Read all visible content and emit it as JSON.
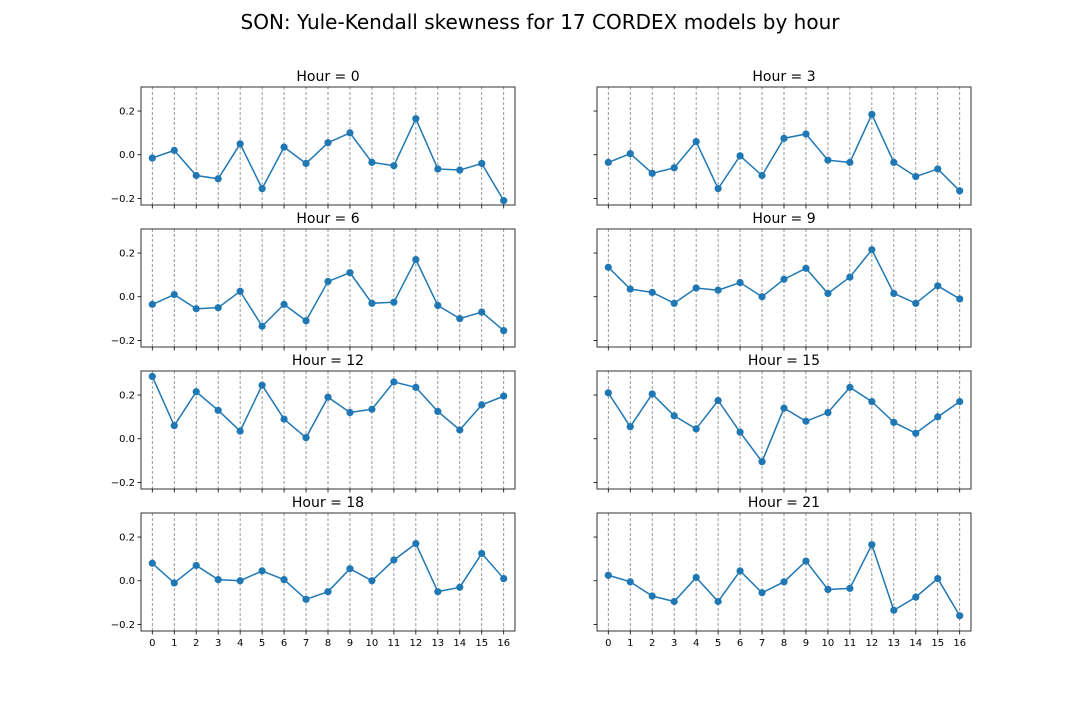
{
  "suptitle": "SON: Yule-Kendall skewness for 17 CORDEX models by hour",
  "colors": {
    "line": "#1f77b4",
    "grid": "#808080"
  },
  "chart_data": [
    {
      "type": "line",
      "title": "Hour = 0",
      "x": [
        0,
        1,
        2,
        3,
        4,
        5,
        6,
        7,
        8,
        9,
        10,
        11,
        12,
        13,
        14,
        15,
        16
      ],
      "ylim": [
        -0.23,
        0.31
      ],
      "yticks": [
        -0.2,
        0.0,
        0.2
      ],
      "ytick_labels": [
        "−0.2",
        "0.0",
        "0.2"
      ],
      "xtick_labels": [],
      "grid": "vertical-dashed",
      "values": [
        -0.015,
        0.02,
        -0.095,
        -0.11,
        0.05,
        -0.155,
        0.035,
        -0.04,
        0.055,
        0.1,
        -0.035,
        -0.05,
        0.165,
        -0.065,
        -0.07,
        -0.04,
        -0.21
      ]
    },
    {
      "type": "line",
      "title": "Hour = 3",
      "x": [
        0,
        1,
        2,
        3,
        4,
        5,
        6,
        7,
        8,
        9,
        10,
        11,
        12,
        13,
        14,
        15,
        16
      ],
      "ylim": [
        -0.23,
        0.31
      ],
      "yticks": [
        -0.2,
        0.0,
        0.2
      ],
      "ytick_labels": [],
      "xtick_labels": [],
      "grid": "vertical-dashed",
      "values": [
        -0.035,
        0.005,
        -0.085,
        -0.06,
        0.06,
        -0.155,
        -0.005,
        -0.095,
        0.075,
        0.095,
        -0.025,
        -0.035,
        0.185,
        -0.035,
        -0.1,
        -0.065,
        -0.165
      ]
    },
    {
      "type": "line",
      "title": "Hour = 6",
      "x": [
        0,
        1,
        2,
        3,
        4,
        5,
        6,
        7,
        8,
        9,
        10,
        11,
        12,
        13,
        14,
        15,
        16
      ],
      "ylim": [
        -0.23,
        0.31
      ],
      "yticks": [
        -0.2,
        0.0,
        0.2
      ],
      "ytick_labels": [
        "−0.2",
        "0.0",
        "0.2"
      ],
      "xtick_labels": [],
      "grid": "vertical-dashed",
      "values": [
        -0.035,
        0.01,
        -0.055,
        -0.05,
        0.025,
        -0.135,
        -0.035,
        -0.11,
        0.07,
        0.11,
        -0.03,
        -0.025,
        0.17,
        -0.04,
        -0.1,
        -0.07,
        -0.155
      ]
    },
    {
      "type": "line",
      "title": "Hour = 9",
      "x": [
        0,
        1,
        2,
        3,
        4,
        5,
        6,
        7,
        8,
        9,
        10,
        11,
        12,
        13,
        14,
        15,
        16
      ],
      "ylim": [
        -0.23,
        0.31
      ],
      "yticks": [
        -0.2,
        0.0,
        0.2
      ],
      "ytick_labels": [],
      "xtick_labels": [],
      "grid": "vertical-dashed",
      "values": [
        0.135,
        0.035,
        0.02,
        -0.03,
        0.04,
        0.03,
        0.065,
        0.0,
        0.08,
        0.13,
        0.015,
        0.09,
        0.215,
        0.015,
        -0.03,
        0.05,
        -0.01
      ]
    },
    {
      "type": "line",
      "title": "Hour = 12",
      "x": [
        0,
        1,
        2,
        3,
        4,
        5,
        6,
        7,
        8,
        9,
        10,
        11,
        12,
        13,
        14,
        15,
        16
      ],
      "ylim": [
        -0.23,
        0.31
      ],
      "yticks": [
        -0.2,
        0.0,
        0.2
      ],
      "ytick_labels": [
        "−0.2",
        "0.0",
        "0.2"
      ],
      "xtick_labels": [],
      "grid": "vertical-dashed",
      "values": [
        0.285,
        0.06,
        0.215,
        0.13,
        0.035,
        0.245,
        0.09,
        0.005,
        0.19,
        0.12,
        0.135,
        0.26,
        0.235,
        0.125,
        0.04,
        0.155,
        0.195
      ]
    },
    {
      "type": "line",
      "title": "Hour = 15",
      "x": [
        0,
        1,
        2,
        3,
        4,
        5,
        6,
        7,
        8,
        9,
        10,
        11,
        12,
        13,
        14,
        15,
        16
      ],
      "ylim": [
        -0.23,
        0.31
      ],
      "yticks": [
        -0.2,
        0.0,
        0.2
      ],
      "ytick_labels": [],
      "xtick_labels": [],
      "grid": "vertical-dashed",
      "values": [
        0.21,
        0.055,
        0.205,
        0.105,
        0.045,
        0.175,
        0.03,
        -0.105,
        0.14,
        0.08,
        0.12,
        0.235,
        0.17,
        0.075,
        0.025,
        0.1,
        0.17
      ]
    },
    {
      "type": "line",
      "title": "Hour = 18",
      "x": [
        0,
        1,
        2,
        3,
        4,
        5,
        6,
        7,
        8,
        9,
        10,
        11,
        12,
        13,
        14,
        15,
        16
      ],
      "ylim": [
        -0.23,
        0.31
      ],
      "yticks": [
        -0.2,
        0.0,
        0.2
      ],
      "ytick_labels": [
        "−0.2",
        "0.0",
        "0.2"
      ],
      "xtick_labels": [
        "0",
        "1",
        "2",
        "3",
        "4",
        "5",
        "6",
        "7",
        "8",
        "9",
        "10",
        "11",
        "12",
        "13",
        "14",
        "15",
        "16"
      ],
      "grid": "vertical-dashed",
      "values": [
        0.08,
        -0.01,
        0.07,
        0.005,
        0.0,
        0.045,
        0.005,
        -0.085,
        -0.05,
        0.055,
        0.0,
        0.095,
        0.17,
        -0.05,
        -0.03,
        0.125,
        0.01
      ]
    },
    {
      "type": "line",
      "title": "Hour = 21",
      "x": [
        0,
        1,
        2,
        3,
        4,
        5,
        6,
        7,
        8,
        9,
        10,
        11,
        12,
        13,
        14,
        15,
        16
      ],
      "ylim": [
        -0.23,
        0.31
      ],
      "yticks": [
        -0.2,
        0.0,
        0.2
      ],
      "ytick_labels": [],
      "xtick_labels": [
        "0",
        "1",
        "2",
        "3",
        "4",
        "5",
        "6",
        "7",
        "8",
        "9",
        "10",
        "11",
        "12",
        "13",
        "14",
        "15",
        "16"
      ],
      "grid": "vertical-dashed",
      "values": [
        0.025,
        -0.005,
        -0.07,
        -0.095,
        0.015,
        -0.095,
        0.045,
        -0.055,
        -0.005,
        0.09,
        -0.04,
        -0.035,
        0.165,
        -0.135,
        -0.075,
        0.01,
        -0.16
      ]
    }
  ]
}
